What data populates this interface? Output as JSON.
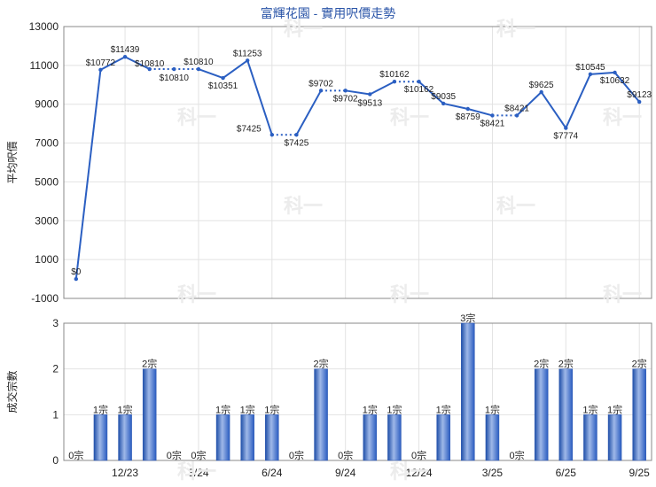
{
  "chart_data": [
    {
      "type": "line",
      "title": "富輝花園 - 實用呎價走勢",
      "ylabel": "平均呎價",
      "ylim": [
        -1000,
        13000
      ],
      "yticks": [
        -1000,
        1000,
        3000,
        5000,
        7000,
        9000,
        11000,
        13000
      ],
      "grid": true,
      "series": [
        {
          "color": "#2b5fc2",
          "points": [
            {
              "i": 0,
              "value": 0,
              "label": "$0",
              "dotted_to_next": false
            },
            {
              "i": 1,
              "value": 10772,
              "label": "$10772",
              "dotted_to_next": false
            },
            {
              "i": 2,
              "value": 11439,
              "label": "$11439",
              "dotted_to_next": false
            },
            {
              "i": 3,
              "value": 10810,
              "label": "$10810",
              "dotted_to_next": true
            },
            {
              "i": 4,
              "value": 10810,
              "label": "$10810",
              "dotted_to_next": true
            },
            {
              "i": 5,
              "value": 10810,
              "label": "$10810",
              "dotted_to_next": false
            },
            {
              "i": 6,
              "value": 10351,
              "label": "$10351",
              "dotted_to_next": false
            },
            {
              "i": 7,
              "value": 11253,
              "label": "$11253",
              "dotted_to_next": false
            },
            {
              "i": 8,
              "value": 7425,
              "label": "$7425",
              "dotted_to_next": true
            },
            {
              "i": 9,
              "value": 7425,
              "label": "$7425",
              "dotted_to_next": false
            },
            {
              "i": 10,
              "value": 9702,
              "label": "$9702",
              "dotted_to_next": true
            },
            {
              "i": 11,
              "value": 9702,
              "label": "$9702",
              "dotted_to_next": false
            },
            {
              "i": 12,
              "value": 9513,
              "label": "$9513",
              "dotted_to_next": false
            },
            {
              "i": 13,
              "value": 10162,
              "label": "$10162",
              "dotted_to_next": true
            },
            {
              "i": 14,
              "value": 10162,
              "label": "$10162",
              "dotted_to_next": false
            },
            {
              "i": 15,
              "value": 9035,
              "label": "$9035",
              "dotted_to_next": false
            },
            {
              "i": 16,
              "value": 8759,
              "label": "$8759",
              "dotted_to_next": false
            },
            {
              "i": 17,
              "value": 8421,
              "label": "$8421",
              "dotted_to_next": true
            },
            {
              "i": 18,
              "value": 8421,
              "label": "$8421",
              "dotted_to_next": false
            },
            {
              "i": 19,
              "value": 9625,
              "label": "$9625",
              "dotted_to_next": false
            },
            {
              "i": 20,
              "value": 7774,
              "label": "$7774",
              "dotted_to_next": false
            },
            {
              "i": 21,
              "value": 10545,
              "label": "$10545",
              "dotted_to_next": false
            },
            {
              "i": 22,
              "value": 10632,
              "label": "$10632",
              "dotted_to_next": false
            },
            {
              "i": 23,
              "value": 9123,
              "label": "$9123",
              "dotted_to_next": false
            }
          ]
        }
      ]
    },
    {
      "type": "bar",
      "ylabel": "成交宗數",
      "ylim": [
        0,
        3
      ],
      "yticks": [
        0,
        1,
        2,
        3
      ],
      "grid": true,
      "color": "#3a6fd0",
      "values": [
        0,
        1,
        1,
        2,
        0,
        0,
        1,
        1,
        1,
        0,
        2,
        0,
        1,
        1,
        0,
        1,
        3,
        1,
        0,
        2,
        2,
        1,
        1,
        2
      ],
      "value_labels": [
        "0宗",
        "1宗",
        "1宗",
        "2宗",
        "0宗",
        "0宗",
        "1宗",
        "1宗",
        "1宗",
        "0宗",
        "2宗",
        "0宗",
        "1宗",
        "1宗",
        "0宗",
        "1宗",
        "3宗",
        "1宗",
        "0宗",
        "2宗",
        "2宗",
        "1宗",
        "1宗",
        "2宗"
      ],
      "xticks": [
        {
          "at": 2,
          "label": "12/23"
        },
        {
          "at": 5,
          "label": "3/24"
        },
        {
          "at": 8,
          "label": "6/24"
        },
        {
          "at": 11,
          "label": "9/24"
        },
        {
          "at": 14,
          "label": "12/24"
        },
        {
          "at": 17,
          "label": "3/25"
        },
        {
          "at": 20,
          "label": "6/25"
        },
        {
          "at": 23,
          "label": "9/25"
        }
      ]
    }
  ],
  "watermark": "科一"
}
